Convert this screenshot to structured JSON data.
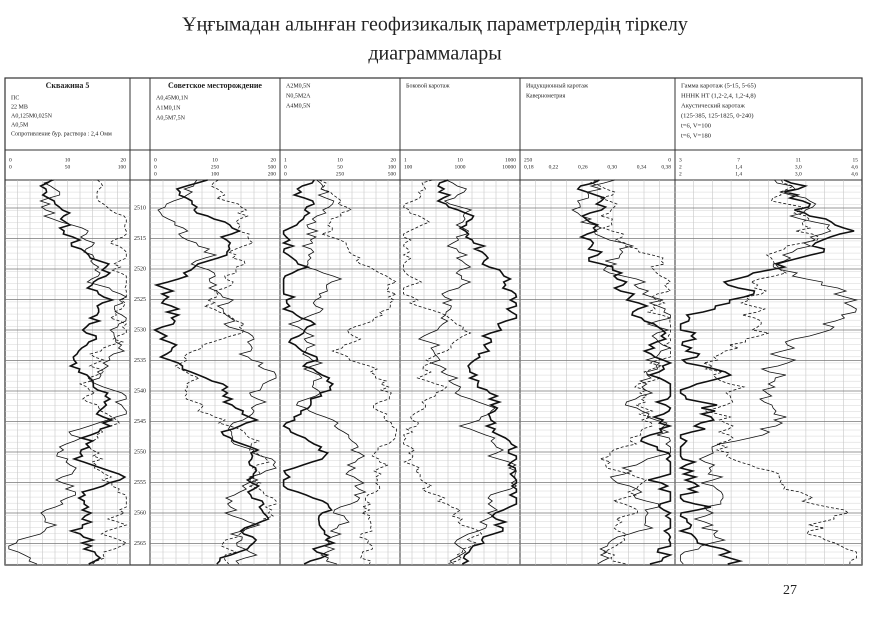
{
  "title": [
    "Ұңғымадан алынған геофизикалық параметрлердің тіркелу",
    "диаграммалары"
  ],
  "page_number": "27",
  "tracks": [
    {
      "title": "Скважина 5",
      "labels": [
        "ПС",
        "22 МВ",
        "А0,125М0,025N",
        "А0,5М",
        "Сопротивление бур. раствора : 2,4 Омм"
      ],
      "scales": [
        [
          "0",
          "10",
          "20"
        ],
        [
          "0",
          "50",
          "100"
        ]
      ]
    },
    {
      "title": "Советское месторождение",
      "labels": [
        "А0,45М0,1N",
        "А1М0,1N",
        "А0,5М7,5N"
      ],
      "scales": [
        [
          "0",
          "10",
          "20"
        ],
        [
          "0",
          "250",
          "500"
        ],
        [
          "0",
          "100",
          "200"
        ]
      ]
    },
    {
      "labels": [
        "А2М0,5N",
        "N0,5М2А",
        "А4М0,5N"
      ],
      "scales": [
        [
          "1",
          "10",
          "20"
        ],
        [
          "0",
          "50",
          "100"
        ],
        [
          "0",
          "250",
          "500"
        ]
      ]
    },
    {
      "labels": [
        "Боковой каротаж"
      ],
      "scales": [
        [
          "1",
          "10",
          "1000"
        ],
        [
          "100",
          "1000",
          "10000"
        ]
      ]
    },
    {
      "labels": [
        "Индукционный каротаж",
        "Кавернометрия"
      ],
      "scales": [
        [
          "250",
          "0"
        ],
        [
          "0,18",
          "0,22",
          "0,26",
          "0,30",
          "0,34",
          "0,38"
        ]
      ]
    },
    {
      "labels": [
        "Гамма каротаж (5-15, 5-65)",
        "НННК НТ (1,2-2,4, 1,2-4,8)",
        "Акустический каротаж",
        "(125-385, 125-1825, 0-240)",
        "t=6, V=100",
        "t=6, V=180"
      ],
      "scales": [
        [
          "3",
          "7",
          "11",
          "15"
        ],
        [
          "2",
          "1,4",
          "3,0",
          "4,6"
        ],
        [
          "2",
          "1,4",
          "3,0",
          "4,6"
        ]
      ]
    }
  ],
  "depths": [
    "2510",
    "2515",
    "2520",
    "2525",
    "2530",
    "2535",
    "2540",
    "2545",
    "2550",
    "2555",
    "2560",
    "2565"
  ]
}
